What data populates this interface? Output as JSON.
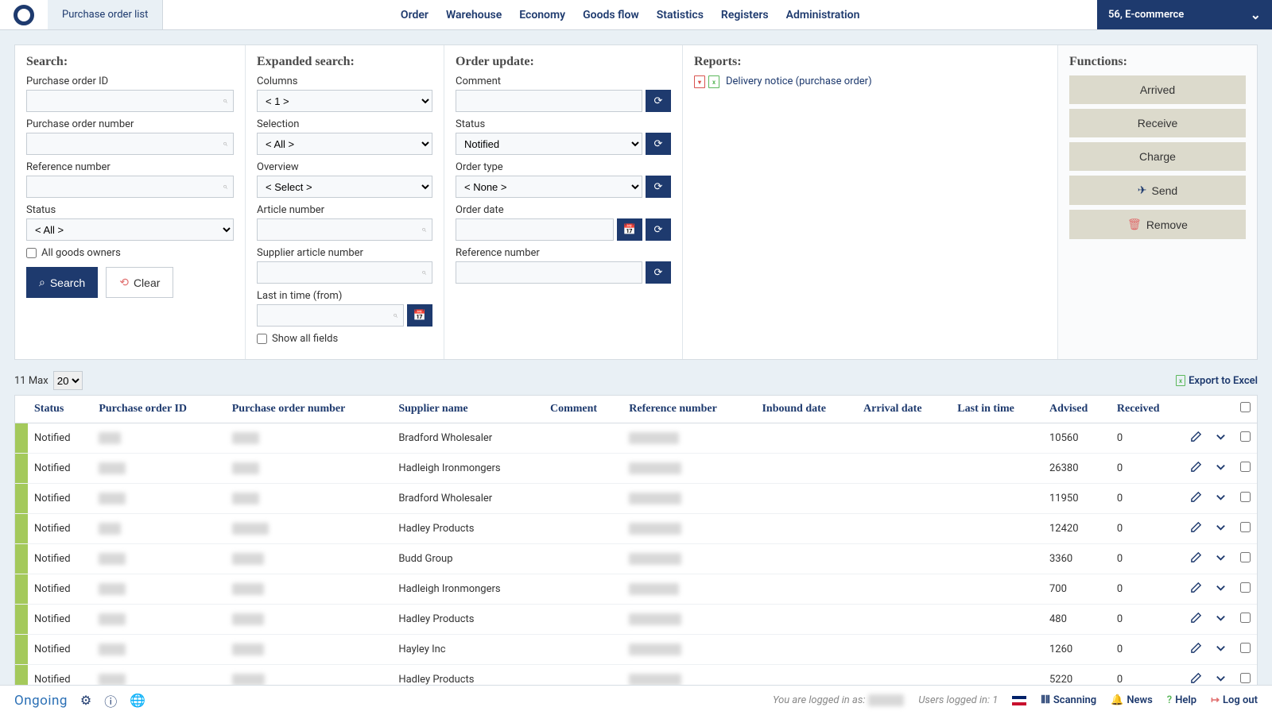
{
  "topbar": {
    "tab": "Purchase order list",
    "nav": [
      "Order",
      "Warehouse",
      "Economy",
      "Goods flow",
      "Statistics",
      "Registers",
      "Administration"
    ],
    "account": "56, E-commerce"
  },
  "panels": {
    "search": {
      "title": "Search:",
      "po_id_label": "Purchase order ID",
      "po_num_label": "Purchase order number",
      "ref_label": "Reference number",
      "status_label": "Status",
      "status_value": "< All >",
      "all_owners": "All goods owners",
      "search_btn": "Search",
      "clear_btn": "Clear"
    },
    "expanded": {
      "title": "Expanded search:",
      "columns_label": "Columns",
      "columns_value": "< 1 >",
      "selection_label": "Selection",
      "selection_value": "< All >",
      "overview_label": "Overview",
      "overview_value": "< Select >",
      "article_label": "Article number",
      "supplier_article_label": "Supplier article number",
      "last_time_label": "Last in time (from)",
      "show_all": "Show all fields"
    },
    "update": {
      "title": "Order update:",
      "comment_label": "Comment",
      "status_label": "Status",
      "status_value": "Notified",
      "order_type_label": "Order type",
      "order_type_value": "< None >",
      "order_date_label": "Order date",
      "ref_label": "Reference number"
    },
    "reports": {
      "title": "Reports:",
      "item": "Delivery notice (purchase order)"
    },
    "functions": {
      "title": "Functions:",
      "arrived": "Arrived",
      "receive": "Receive",
      "charge": "Charge",
      "send": "Send",
      "remove": "Remove"
    }
  },
  "table": {
    "count_text": "11 Max",
    "max_value": "20",
    "export": "Export to Excel",
    "headers": {
      "status": "Status",
      "po_id": "Purchase order ID",
      "po_num": "Purchase order number",
      "supplier": "Supplier name",
      "comment": "Comment",
      "ref": "Reference number",
      "inbound": "Inbound date",
      "arrival": "Arrival date",
      "last_time": "Last in time",
      "advised": "Advised",
      "received": "Received"
    },
    "rows": [
      {
        "status": "Notified",
        "po_id": "xxx",
        "po_num": "xxxx",
        "supplier": "Bradford Wholesaler",
        "ref": "xxx xxxxx",
        "advised": "10560",
        "received": "0"
      },
      {
        "status": "Notified",
        "po_id": "xxxx",
        "po_num": "xxxx",
        "supplier": "Hadleigh Ironmongers",
        "ref": "xxxxxxxxx",
        "advised": "26380",
        "received": "0"
      },
      {
        "status": "Notified",
        "po_id": "xxxx",
        "po_num": "xxxx",
        "supplier": "Bradford Wholesaler",
        "ref": "xxxxxxxxx",
        "advised": "11950",
        "received": "0"
      },
      {
        "status": "Notified",
        "po_id": "xxx",
        "po_num": "xxxxxx",
        "supplier": "Hadley Products",
        "ref": "xxxxxxxxx",
        "advised": "12420",
        "received": "0"
      },
      {
        "status": "Notified",
        "po_id": "xxxx",
        "po_num": "xxxxx",
        "supplier": "Budd Group",
        "ref": "xxxxxxxxx",
        "advised": "3360",
        "received": "0"
      },
      {
        "status": "Notified",
        "po_id": "xxxx",
        "po_num": "xxxxx",
        "supplier": "Hadleigh Ironmongers",
        "ref": "xxxx xxxx",
        "advised": "700",
        "received": "0"
      },
      {
        "status": "Notified",
        "po_id": "xxxx",
        "po_num": "xxxxx",
        "supplier": "Hadley Products",
        "ref": "xxxxxxxxx",
        "advised": "480",
        "received": "0"
      },
      {
        "status": "Notified",
        "po_id": "xxxx",
        "po_num": "xxxxx",
        "supplier": "Hayley Inc",
        "ref": "xxxxxxxxx",
        "advised": "1260",
        "received": "0"
      },
      {
        "status": "Notified",
        "po_id": "xxxx",
        "po_num": "xxxx2",
        "supplier": "Hadley Products",
        "ref": "xxxxxxxxx",
        "advised": "5220",
        "received": "0"
      }
    ]
  },
  "footer": {
    "brand": "Ongoing",
    "logged_in_label": "You are logged in as:",
    "logged_in_user": "xxxxxx",
    "users_count_label": "Users logged in: 1",
    "scanning": "Scanning",
    "news": "News",
    "help": "Help",
    "logout": "Log out"
  }
}
